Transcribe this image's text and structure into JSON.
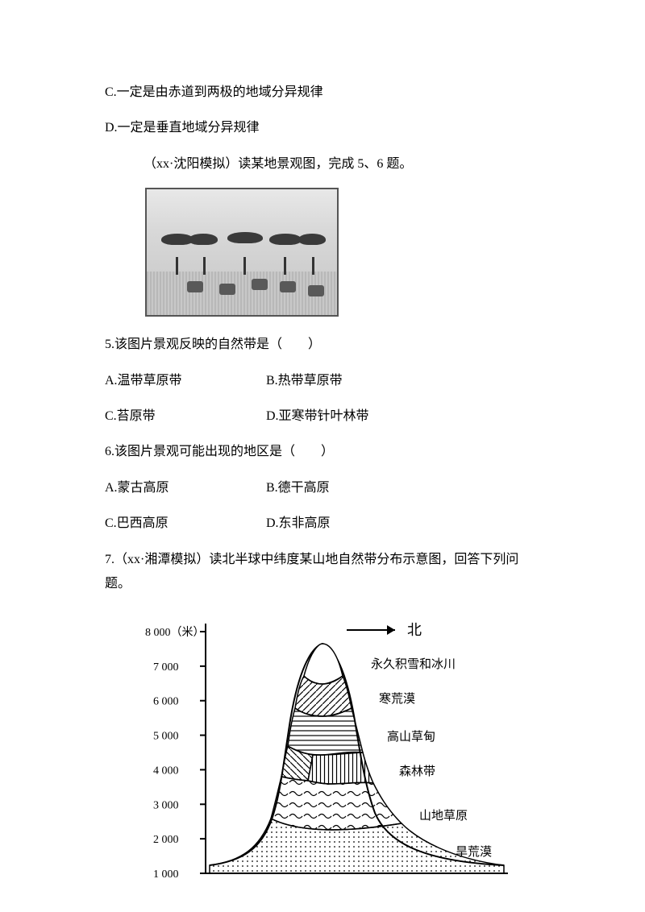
{
  "lines": {
    "c": "C.一定是由赤道到两极的地域分异规律",
    "d": "D.一定是垂直地域分异规律",
    "intro1": "（xx·沈阳模拟）读某地景观图，完成 5、6 题。",
    "q5": "5.该图片景观反映的自然带是（　　）",
    "q5a": "A.温带草原带",
    "q5b": "B.热带草原带",
    "q5c": "C.苔原带",
    "q5d": "D.亚寒带针叶林带",
    "q6": "6.该图片景观可能出现的地区是（　　）",
    "q6a": "A.蒙古高原",
    "q6b": "B.德干高原",
    "q6c": "C.巴西高原",
    "q6d": "D.东非高原",
    "q7": "7.（xx·湘潭模拟）读北半球中纬度某山地自然带分布示意图，回答下列问题。"
  },
  "diagram": {
    "axis_unit": "8 000（米）",
    "ticks": [
      "8 000",
      "7 000",
      "6 000",
      "5 000",
      "4 000",
      "3 000",
      "2 000",
      "1 000"
    ],
    "y_values": [
      8000,
      7000,
      6000,
      5000,
      4000,
      3000,
      2000,
      1000
    ],
    "y_range": [
      1000,
      8000
    ],
    "north_label": "北",
    "zones": [
      {
        "label": "永久积雪和冰川"
      },
      {
        "label": "寒荒漠"
      },
      {
        "label": "高山草甸"
      },
      {
        "label": "森林带"
      },
      {
        "label": "山地草原"
      },
      {
        "label": "旱荒漠"
      }
    ],
    "tick_fontsize": 14,
    "label_fontsize": 15,
    "stroke": "#000000",
    "background": "#ffffff"
  }
}
